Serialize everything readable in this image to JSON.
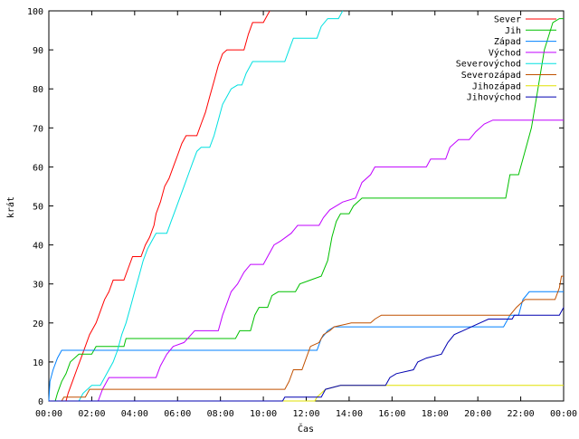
{
  "chart_data": {
    "type": "line",
    "title": "",
    "xlabel": "Čas",
    "ylabel": "krát",
    "xlim": [
      0,
      24
    ],
    "ylim": [
      0,
      100
    ],
    "x_ticks": [
      "00:00",
      "02:00",
      "04:00",
      "06:00",
      "08:00",
      "10:00",
      "12:00",
      "14:00",
      "16:00",
      "18:00",
      "20:00",
      "22:00",
      "00:00"
    ],
    "y_ticks": [
      "0",
      "10",
      "20",
      "30",
      "40",
      "50",
      "60",
      "70",
      "80",
      "90",
      "100"
    ],
    "grid": false,
    "legend_position": "top-right",
    "series": [
      {
        "name": "Sever",
        "color": "#ff0000",
        "points": [
          [
            0.0,
            0
          ],
          [
            0.8,
            0
          ],
          [
            0.9,
            2
          ],
          [
            1.1,
            5
          ],
          [
            1.3,
            8
          ],
          [
            1.5,
            11
          ],
          [
            1.7,
            14
          ],
          [
            1.9,
            17
          ],
          [
            2.2,
            20
          ],
          [
            2.4,
            23
          ],
          [
            2.6,
            26
          ],
          [
            2.8,
            28
          ],
          [
            3.0,
            31
          ],
          [
            3.5,
            31
          ],
          [
            3.7,
            34
          ],
          [
            3.9,
            37
          ],
          [
            4.3,
            37
          ],
          [
            4.5,
            40
          ],
          [
            4.7,
            42
          ],
          [
            4.9,
            45
          ],
          [
            5.0,
            48
          ],
          [
            5.2,
            51
          ],
          [
            5.4,
            55
          ],
          [
            5.6,
            57
          ],
          [
            5.8,
            60
          ],
          [
            6.0,
            63
          ],
          [
            6.2,
            66
          ],
          [
            6.4,
            68
          ],
          [
            6.9,
            68
          ],
          [
            7.1,
            71
          ],
          [
            7.3,
            74
          ],
          [
            7.5,
            78
          ],
          [
            7.7,
            82
          ],
          [
            7.9,
            86
          ],
          [
            8.1,
            89
          ],
          [
            8.3,
            90
          ],
          [
            9.1,
            90
          ],
          [
            9.3,
            94
          ],
          [
            9.5,
            97
          ],
          [
            10.0,
            97
          ],
          [
            10.2,
            99
          ],
          [
            10.3,
            100
          ]
        ]
      },
      {
        "name": "Jih",
        "color": "#00c000",
        "points": [
          [
            0.0,
            0
          ],
          [
            0.3,
            0
          ],
          [
            0.4,
            2
          ],
          [
            0.6,
            5
          ],
          [
            0.8,
            7
          ],
          [
            1.0,
            10
          ],
          [
            1.4,
            12
          ],
          [
            2.0,
            12
          ],
          [
            2.2,
            14
          ],
          [
            3.5,
            14
          ],
          [
            3.6,
            16
          ],
          [
            8.7,
            16
          ],
          [
            8.9,
            18
          ],
          [
            9.4,
            18
          ],
          [
            9.6,
            22
          ],
          [
            9.8,
            24
          ],
          [
            10.2,
            24
          ],
          [
            10.4,
            27
          ],
          [
            10.7,
            28
          ],
          [
            11.5,
            28
          ],
          [
            11.7,
            30
          ],
          [
            12.2,
            31
          ],
          [
            12.7,
            32
          ],
          [
            13.0,
            36
          ],
          [
            13.2,
            42
          ],
          [
            13.4,
            46
          ],
          [
            13.6,
            48
          ],
          [
            14.0,
            48
          ],
          [
            14.2,
            50
          ],
          [
            14.6,
            52
          ],
          [
            21.3,
            52
          ],
          [
            21.5,
            58
          ],
          [
            21.9,
            58
          ],
          [
            22.2,
            64
          ],
          [
            22.5,
            70
          ],
          [
            22.8,
            80
          ],
          [
            23.1,
            90
          ],
          [
            23.5,
            97
          ],
          [
            23.8,
            98
          ],
          [
            24.0,
            98
          ]
        ]
      },
      {
        "name": "Západ",
        "color": "#0080ff",
        "points": [
          [
            0.0,
            0
          ],
          [
            0.05,
            5
          ],
          [
            0.2,
            8
          ],
          [
            0.4,
            11
          ],
          [
            0.6,
            13
          ],
          [
            0.8,
            13
          ],
          [
            12.5,
            13
          ],
          [
            12.7,
            16
          ],
          [
            13.0,
            18
          ],
          [
            13.3,
            19
          ],
          [
            13.6,
            19
          ],
          [
            21.2,
            19
          ],
          [
            21.5,
            22
          ],
          [
            21.9,
            22
          ],
          [
            22.1,
            26
          ],
          [
            22.4,
            28
          ],
          [
            24.0,
            28
          ]
        ]
      },
      {
        "name": "Východ",
        "color": "#c000ff",
        "points": [
          [
            0.0,
            0
          ],
          [
            2.3,
            0
          ],
          [
            2.5,
            3
          ],
          [
            2.8,
            6
          ],
          [
            5.0,
            6
          ],
          [
            5.2,
            9
          ],
          [
            5.5,
            12
          ],
          [
            5.8,
            14
          ],
          [
            6.3,
            15
          ],
          [
            6.8,
            18
          ],
          [
            7.9,
            18
          ],
          [
            8.1,
            22
          ],
          [
            8.3,
            25
          ],
          [
            8.5,
            28
          ],
          [
            8.8,
            30
          ],
          [
            9.1,
            33
          ],
          [
            9.4,
            35
          ],
          [
            10.0,
            35
          ],
          [
            10.2,
            37
          ],
          [
            10.5,
            40
          ],
          [
            10.8,
            41
          ],
          [
            11.3,
            43
          ],
          [
            11.6,
            45
          ],
          [
            12.6,
            45
          ],
          [
            12.8,
            47
          ],
          [
            13.1,
            49
          ],
          [
            13.7,
            51
          ],
          [
            14.3,
            52
          ],
          [
            14.6,
            56
          ],
          [
            15.0,
            58
          ],
          [
            15.2,
            60
          ],
          [
            17.6,
            60
          ],
          [
            17.8,
            62
          ],
          [
            18.5,
            62
          ],
          [
            18.7,
            65
          ],
          [
            19.1,
            67
          ],
          [
            19.6,
            67
          ],
          [
            19.9,
            69
          ],
          [
            20.3,
            71
          ],
          [
            20.7,
            72
          ],
          [
            24.0,
            72
          ]
        ]
      },
      {
        "name": "Severovýchod",
        "color": "#00e0e0",
        "points": [
          [
            0.0,
            0
          ],
          [
            1.4,
            0
          ],
          [
            1.6,
            2
          ],
          [
            2.0,
            4
          ],
          [
            2.4,
            4
          ],
          [
            2.7,
            7
          ],
          [
            3.0,
            10
          ],
          [
            3.2,
            13
          ],
          [
            3.4,
            17
          ],
          [
            3.6,
            20
          ],
          [
            3.8,
            24
          ],
          [
            4.0,
            28
          ],
          [
            4.2,
            32
          ],
          [
            4.4,
            36
          ],
          [
            4.6,
            39
          ],
          [
            4.8,
            41
          ],
          [
            5.0,
            43
          ],
          [
            5.5,
            43
          ],
          [
            5.7,
            46
          ],
          [
            5.9,
            49
          ],
          [
            6.1,
            52
          ],
          [
            6.3,
            55
          ],
          [
            6.5,
            58
          ],
          [
            6.7,
            61
          ],
          [
            6.9,
            64
          ],
          [
            7.1,
            65
          ],
          [
            7.5,
            65
          ],
          [
            7.7,
            68
          ],
          [
            7.9,
            72
          ],
          [
            8.1,
            76
          ],
          [
            8.3,
            78
          ],
          [
            8.5,
            80
          ],
          [
            8.8,
            81
          ],
          [
            9.0,
            81
          ],
          [
            9.2,
            84
          ],
          [
            9.5,
            87
          ],
          [
            11.0,
            87
          ],
          [
            11.2,
            90
          ],
          [
            11.4,
            93
          ],
          [
            12.5,
            93
          ],
          [
            12.7,
            96
          ],
          [
            13.0,
            98
          ],
          [
            13.5,
            98
          ],
          [
            13.7,
            100
          ]
        ]
      },
      {
        "name": "Severozápad",
        "color": "#c05000",
        "points": [
          [
            0.0,
            0
          ],
          [
            0.6,
            0
          ],
          [
            0.7,
            1
          ],
          [
            1.7,
            1
          ],
          [
            1.9,
            3
          ],
          [
            11.0,
            3
          ],
          [
            11.2,
            5
          ],
          [
            11.4,
            8
          ],
          [
            11.8,
            8
          ],
          [
            12.0,
            11
          ],
          [
            12.2,
            14
          ],
          [
            12.6,
            15
          ],
          [
            12.8,
            17
          ],
          [
            13.1,
            18
          ],
          [
            13.3,
            19
          ],
          [
            14.1,
            20
          ],
          [
            15.0,
            20
          ],
          [
            15.2,
            21
          ],
          [
            15.5,
            22
          ],
          [
            21.5,
            22
          ],
          [
            21.8,
            24
          ],
          [
            22.2,
            26
          ],
          [
            23.6,
            26
          ],
          [
            23.8,
            29
          ],
          [
            23.9,
            32
          ],
          [
            24.0,
            32
          ]
        ]
      },
      {
        "name": "Jihozápad",
        "color": "#e0e000",
        "points": [
          [
            0.0,
            0
          ],
          [
            12.4,
            0
          ],
          [
            12.5,
            1
          ],
          [
            12.7,
            2
          ],
          [
            12.9,
            3
          ],
          [
            13.6,
            4
          ],
          [
            24.0,
            4
          ]
        ]
      },
      {
        "name": "Jihovýchod",
        "color": "#0000b0",
        "points": [
          [
            0.0,
            0
          ],
          [
            10.9,
            0
          ],
          [
            11.0,
            1
          ],
          [
            12.7,
            1
          ],
          [
            12.9,
            3
          ],
          [
            13.6,
            4
          ],
          [
            15.7,
            4
          ],
          [
            15.9,
            6
          ],
          [
            16.2,
            7
          ],
          [
            17.0,
            8
          ],
          [
            17.2,
            10
          ],
          [
            17.6,
            11
          ],
          [
            18.3,
            12
          ],
          [
            18.6,
            15
          ],
          [
            18.9,
            17
          ],
          [
            19.3,
            18
          ],
          [
            19.7,
            19
          ],
          [
            20.5,
            21
          ],
          [
            21.6,
            21
          ],
          [
            21.7,
            22
          ],
          [
            23.8,
            22
          ],
          [
            24.0,
            24
          ]
        ]
      }
    ]
  }
}
